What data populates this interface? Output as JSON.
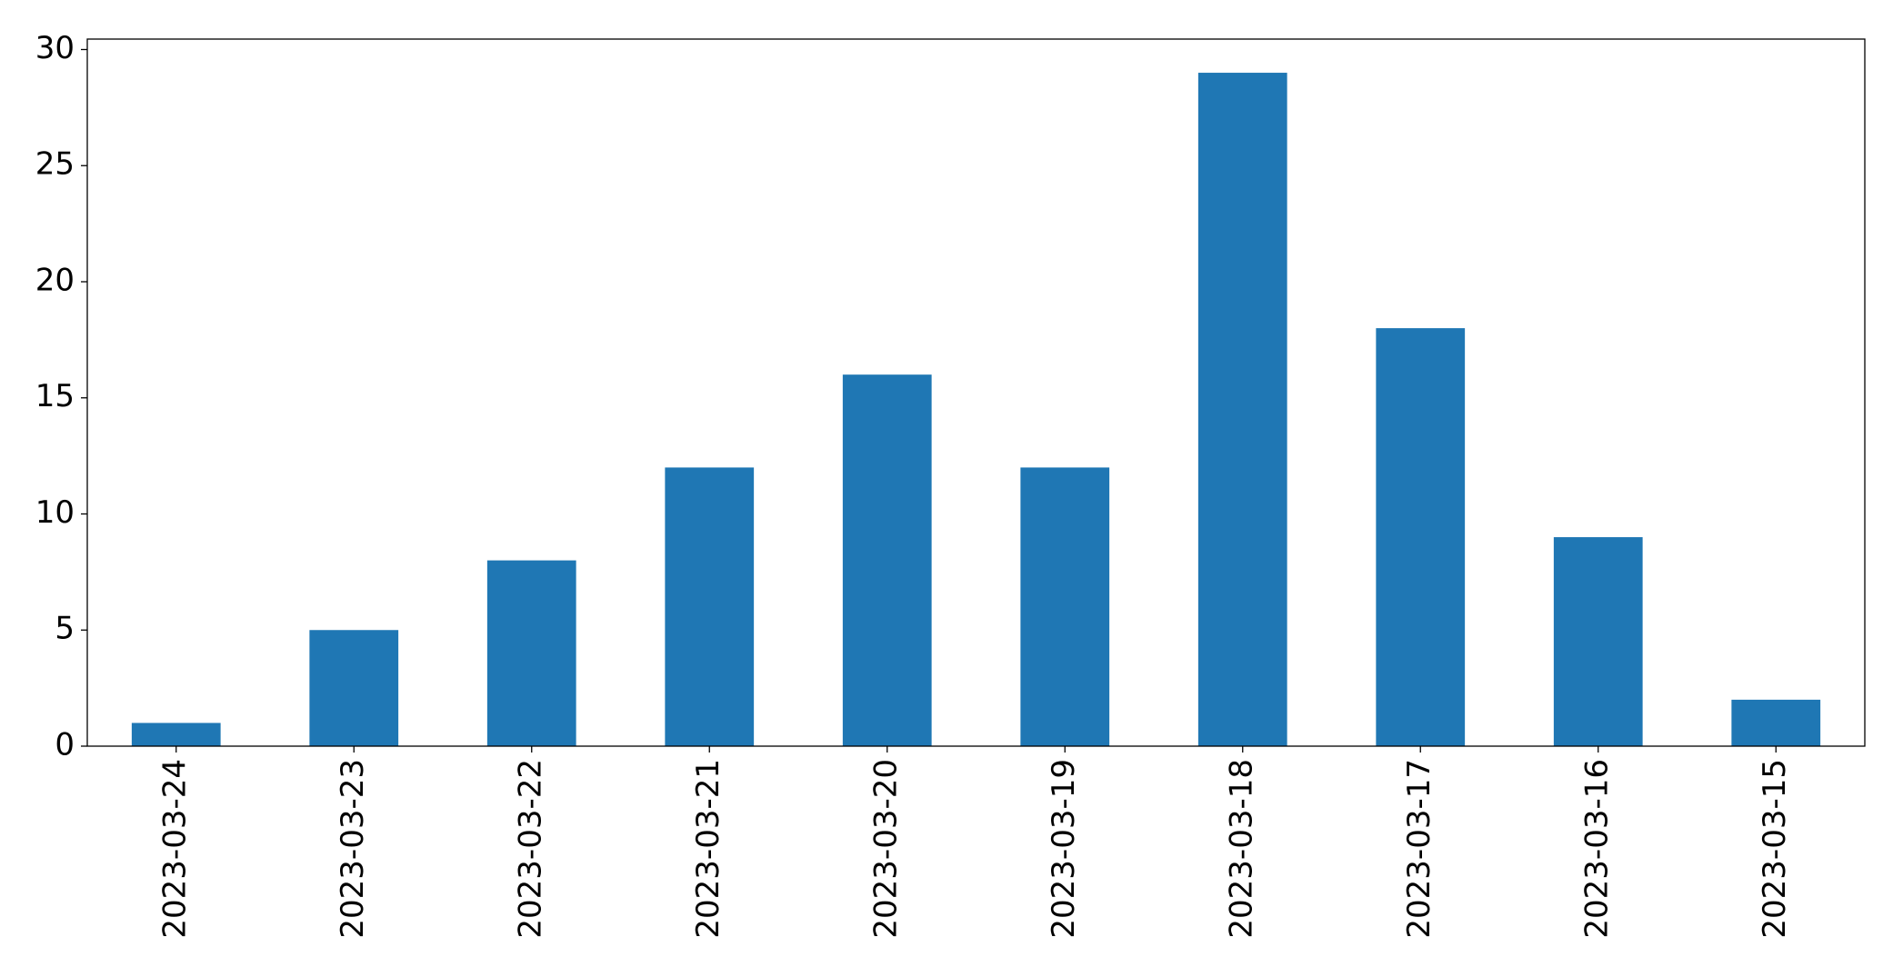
{
  "chart_data": {
    "type": "bar",
    "categories": [
      "2023-03-24",
      "2023-03-23",
      "2023-03-22",
      "2023-03-21",
      "2023-03-20",
      "2023-03-19",
      "2023-03-18",
      "2023-03-17",
      "2023-03-16",
      "2023-03-15"
    ],
    "values": [
      1,
      5,
      8,
      12,
      16,
      12,
      29,
      18,
      9,
      2
    ],
    "color": "#1f77b4",
    "ylim": [
      0,
      30.45
    ],
    "yticks": [
      0,
      5,
      10,
      15,
      20,
      25,
      30
    ],
    "grid": false
  }
}
